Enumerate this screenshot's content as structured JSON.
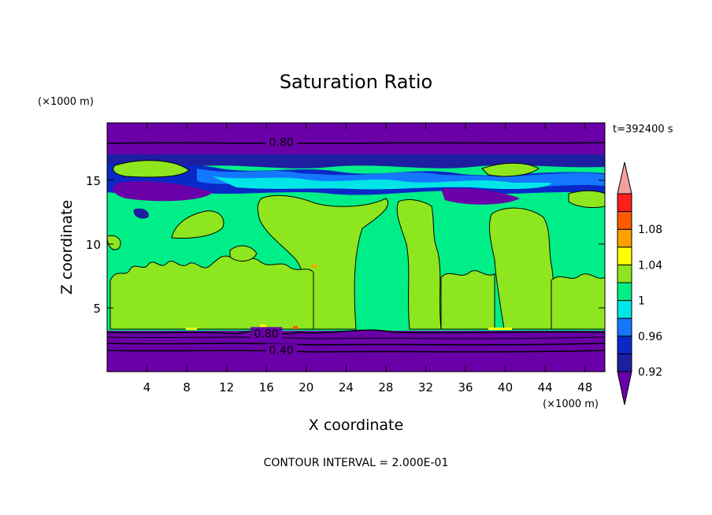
{
  "chart_data": {
    "type": "heatmap",
    "title": "Saturation Ratio",
    "xlabel": "X coordinate",
    "ylabel": "Z coordinate",
    "x_unit": "(×1000 m)",
    "y_unit": "(×1000 m)",
    "time_label": "t=392400 s",
    "footer": "CONTOUR INTERVAL = 2.000E-01",
    "xlim": [
      0,
      50
    ],
    "ylim": [
      0,
      19.5
    ],
    "x_ticks": [
      "4",
      "8",
      "12",
      "16",
      "20",
      "24",
      "28",
      "32",
      "36",
      "40",
      "44",
      "48"
    ],
    "y_ticks": [
      "5",
      "10",
      "15"
    ],
    "contour_labels": [
      {
        "text": "0.80",
        "x": 17.5,
        "y": 18.0
      },
      {
        "text": "0.80",
        "x": 16.0,
        "y": 3.0
      },
      {
        "text": "0.40",
        "x": 17.5,
        "y": 1.7
      }
    ],
    "colorbar": {
      "levels": [
        0.92,
        0.94,
        0.96,
        0.98,
        1.0,
        1.02,
        1.04,
        1.06,
        1.08,
        1.1
      ],
      "tick_labels": [
        "0.92",
        "0.96",
        "1",
        "1.04",
        "1.08"
      ],
      "colors": [
        "#6a00a8",
        "#1e1ea0",
        "#0a28c8",
        "#1478ff",
        "#00e6e6",
        "#00ee88",
        "#8ee61e",
        "#ffff00",
        "#ffa000",
        "#ff5a00",
        "#ff1e1e",
        "#f5a0a0"
      ]
    }
  }
}
